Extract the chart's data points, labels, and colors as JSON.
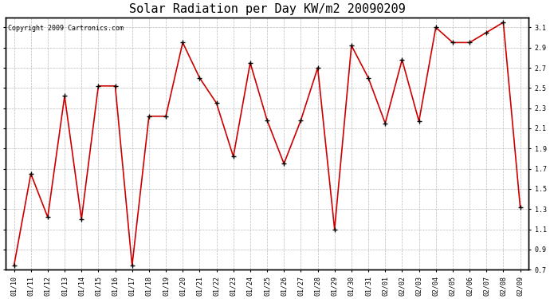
{
  "title": "Solar Radiation per Day KW/m2 20090209",
  "copyright_text": "Copyright 2009 Cartronics.com",
  "dates": [
    "01/10",
    "01/11",
    "01/12",
    "01/13",
    "01/14",
    "01/15",
    "01/16",
    "01/17",
    "01/18",
    "01/19",
    "01/20",
    "01/21",
    "01/22",
    "01/23",
    "01/24",
    "01/25",
    "01/26",
    "01/27",
    "01/28",
    "01/29",
    "01/30",
    "01/31",
    "02/01",
    "02/02",
    "02/03",
    "02/04",
    "02/05",
    "02/06",
    "02/07",
    "02/08",
    "02/09"
  ],
  "values": [
    0.74,
    1.65,
    1.22,
    2.42,
    1.2,
    2.52,
    2.52,
    0.74,
    2.22,
    2.22,
    2.95,
    2.6,
    2.35,
    1.82,
    2.75,
    2.18,
    1.75,
    2.18,
    2.7,
    1.1,
    2.92,
    2.6,
    2.15,
    2.78,
    2.17,
    3.1,
    2.95,
    2.95,
    3.05,
    3.15,
    1.32
  ],
  "line_color": "#cc0000",
  "marker": "+",
  "marker_size": 4,
  "marker_color": "#000000",
  "bg_color": "#ffffff",
  "grid_color": "#bbbbbb",
  "ylim": [
    0.7,
    3.2
  ],
  "yticks": [
    0.7,
    0.9,
    1.1,
    1.3,
    1.5,
    1.7,
    1.9,
    2.1,
    2.3,
    2.5,
    2.7,
    2.9,
    3.1
  ],
  "title_fontsize": 11,
  "tick_fontsize": 6,
  "copyright_fontsize": 6,
  "linewidth": 1.2
}
